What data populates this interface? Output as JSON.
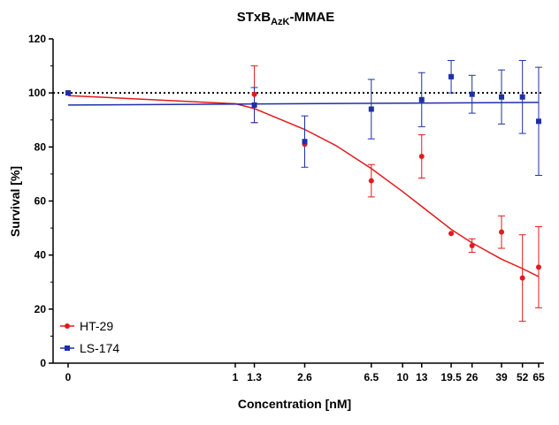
{
  "chart_data": {
    "type": "scatter",
    "title": {
      "prefix": "STxB",
      "subscript": "AzK",
      "suffix": "-MMAE"
    },
    "xlabel": "Concentration [nM]",
    "ylabel": "Survival [%]",
    "xscale": "log (with 0 shown separately at left)",
    "ylim": [
      0,
      120
    ],
    "yticks": [
      0,
      20,
      40,
      60,
      80,
      100,
      120
    ],
    "xticks": [
      "0",
      "1",
      "1.3",
      "2.6",
      "6.5",
      "10",
      "13",
      "19.5",
      "26",
      "39",
      "52",
      "65"
    ],
    "reference_line": {
      "y": 100,
      "style": "dotted"
    },
    "legend_position": "bottom-left",
    "series": [
      {
        "name": "HT-29",
        "color": "#e31a1c",
        "marker": "circle",
        "points": [
          {
            "x": 0,
            "y": 100.0,
            "err": 0
          },
          {
            "x": 1.3,
            "y": 99.5,
            "err": 10.5
          },
          {
            "x": 2.6,
            "y": 81.0,
            "err": 0
          },
          {
            "x": 6.5,
            "y": 67.5,
            "err": 6
          },
          {
            "x": 13,
            "y": 76.5,
            "err": 8
          },
          {
            "x": 19.5,
            "y": 48.0,
            "err": 0
          },
          {
            "x": 26,
            "y": 43.5,
            "err": 2.5
          },
          {
            "x": 39,
            "y": 48.5,
            "err": 6
          },
          {
            "x": 52,
            "y": 31.5,
            "err": 16
          },
          {
            "x": 65,
            "y": 35.5,
            "err": 15
          }
        ],
        "fit": [
          {
            "x": 0,
            "y": 99.0
          },
          {
            "x": 1,
            "y": 96.0
          },
          {
            "x": 1.3,
            "y": 94.2
          },
          {
            "x": 2.6,
            "y": 86.5
          },
          {
            "x": 4,
            "y": 80.5
          },
          {
            "x": 6.5,
            "y": 72.0
          },
          {
            "x": 10,
            "y": 63.5
          },
          {
            "x": 13,
            "y": 58.0
          },
          {
            "x": 19.5,
            "y": 49.5
          },
          {
            "x": 26,
            "y": 44.5
          },
          {
            "x": 39,
            "y": 38.5
          },
          {
            "x": 52,
            "y": 35.0
          },
          {
            "x": 65,
            "y": 32.0
          }
        ]
      },
      {
        "name": "LS-174",
        "color": "#1f2fa8",
        "marker": "square",
        "points": [
          {
            "x": 0,
            "y": 100.0,
            "err": 0
          },
          {
            "x": 1.3,
            "y": 95.5,
            "err": 6.5
          },
          {
            "x": 2.6,
            "y": 82.0,
            "err": 9.5
          },
          {
            "x": 6.5,
            "y": 94.0,
            "err": 11
          },
          {
            "x": 13,
            "y": 97.5,
            "err": 10
          },
          {
            "x": 19.5,
            "y": 106.0,
            "err": 6
          },
          {
            "x": 26,
            "y": 99.5,
            "err": 7
          },
          {
            "x": 39,
            "y": 98.5,
            "err": 10
          },
          {
            "x": 52,
            "y": 98.5,
            "err": 13.5
          },
          {
            "x": 65,
            "y": 89.5,
            "err": 20
          }
        ],
        "fit": [
          {
            "x": 0,
            "y": 95.5
          },
          {
            "x": 65,
            "y": 96.5
          }
        ]
      }
    ]
  }
}
